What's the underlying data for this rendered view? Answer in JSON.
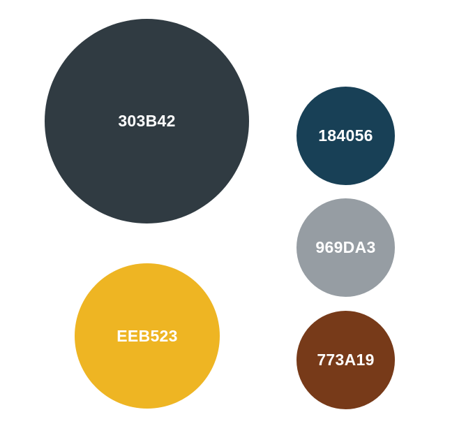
{
  "palette": {
    "swatches": [
      {
        "label": "303B42",
        "color": "#303B42"
      },
      {
        "label": "184056",
        "color": "#184056"
      },
      {
        "label": "969DA3",
        "color": "#969DA3"
      },
      {
        "label": "EEB523",
        "color": "#EEB523"
      },
      {
        "label": "773A19",
        "color": "#773A19"
      }
    ]
  }
}
